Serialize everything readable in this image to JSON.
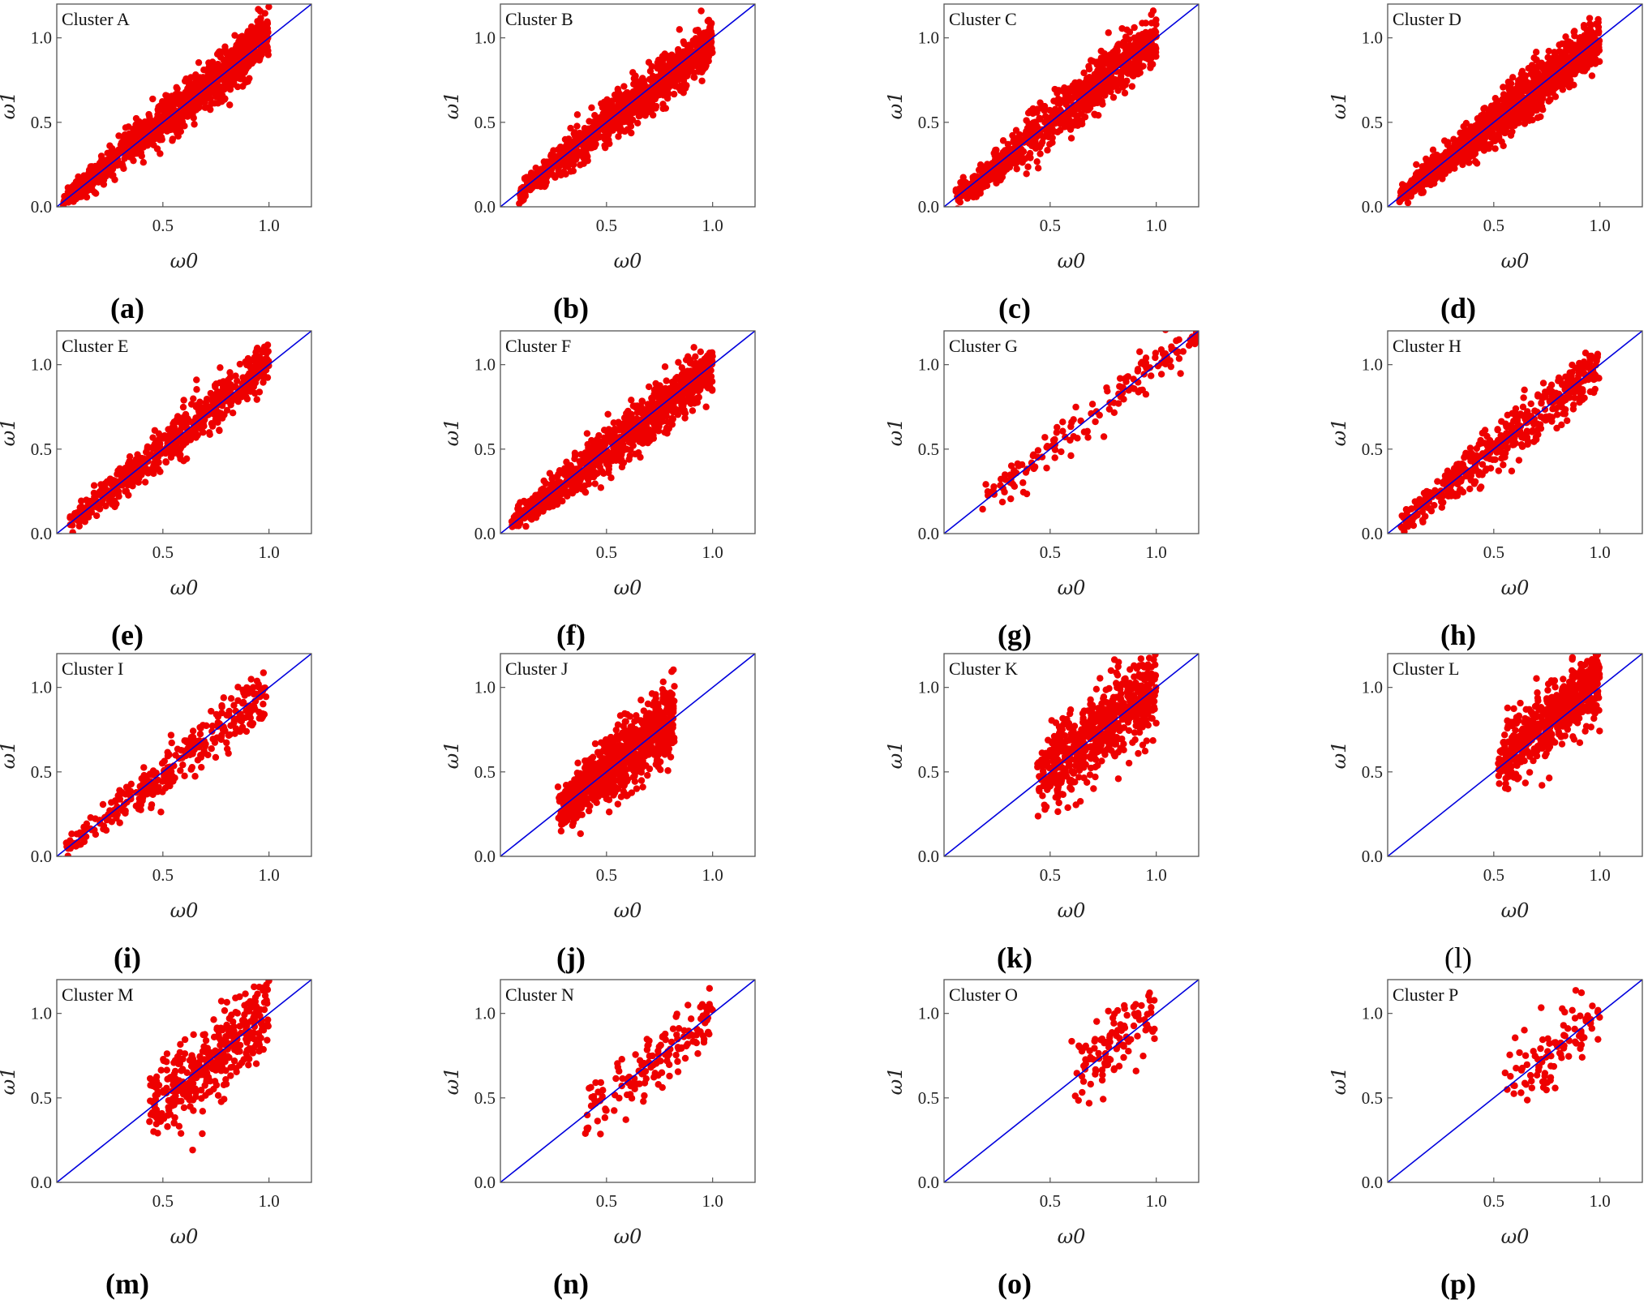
{
  "figure": {
    "panel_count": 16,
    "layout": "4 rows x 4 columns"
  },
  "colors": {
    "points": "#ee0000",
    "identity_line": "#0000dd",
    "axis": "#555555"
  },
  "chart_data": [
    {
      "type": "scatter",
      "panel_label": "(a)",
      "letter": "a",
      "bold": true,
      "title": "Cluster A",
      "xlabel": "ω0",
      "ylabel": "ω1",
      "xlim": [
        0.0,
        1.2
      ],
      "ylim": [
        0.0,
        1.2
      ],
      "xticks": [
        "0.5",
        "1.0"
      ],
      "yticks": [
        "0.0",
        "0.5",
        "1.0"
      ],
      "reference_line": "y = x",
      "point_count": 1200,
      "x_range": [
        0.03,
        1.0
      ],
      "slope_bias": 1.02,
      "spread": 0.07
    },
    {
      "type": "scatter",
      "panel_label": "(b)",
      "letter": "b",
      "bold": true,
      "title": "Cluster B",
      "xlabel": "ω0",
      "ylabel": "ω1",
      "xlim": [
        0.0,
        1.2
      ],
      "ylim": [
        0.0,
        1.2
      ],
      "xticks": [
        "0.5",
        "1.0"
      ],
      "yticks": [
        "0.0",
        "0.5",
        "1.0"
      ],
      "reference_line": "y = x",
      "point_count": 1000,
      "x_range": [
        0.08,
        1.0
      ],
      "slope_bias": 0.98,
      "spread": 0.07
    },
    {
      "type": "scatter",
      "panel_label": "(c)",
      "letter": "c",
      "bold": true,
      "title": "Cluster C",
      "xlabel": "ω0",
      "ylabel": "ω1",
      "xlim": [
        0.0,
        1.2
      ],
      "ylim": [
        0.0,
        1.2
      ],
      "xticks": [
        "0.5",
        "1.0"
      ],
      "yticks": [
        "0.0",
        "0.5",
        "1.0"
      ],
      "reference_line": "y = x",
      "point_count": 800,
      "x_range": [
        0.05,
        1.0
      ],
      "slope_bias": 1.0,
      "spread": 0.08
    },
    {
      "type": "scatter",
      "panel_label": "(d)",
      "letter": "d",
      "bold": true,
      "title": "Cluster D",
      "xlabel": "ω0",
      "ylabel": "ω1",
      "xlim": [
        0.0,
        1.2
      ],
      "ylim": [
        0.0,
        1.2
      ],
      "xticks": [
        "0.5",
        "1.0"
      ],
      "yticks": [
        "0.0",
        "0.5",
        "1.0"
      ],
      "reference_line": "y = x",
      "point_count": 1300,
      "x_range": [
        0.05,
        1.0
      ],
      "slope_bias": 0.99,
      "spread": 0.07
    },
    {
      "type": "scatter",
      "panel_label": "(e)",
      "letter": "e",
      "bold": true,
      "title": "Cluster E",
      "xlabel": "ω0",
      "ylabel": "ω1",
      "xlim": [
        0.0,
        1.2
      ],
      "ylim": [
        0.0,
        1.2
      ],
      "xticks": [
        "0.5",
        "1.0"
      ],
      "yticks": [
        "0.0",
        "0.5",
        "1.0"
      ],
      "reference_line": "y = x",
      "point_count": 600,
      "x_range": [
        0.06,
        1.0
      ],
      "slope_bias": 1.02,
      "spread": 0.07
    },
    {
      "type": "scatter",
      "panel_label": "(f)",
      "letter": "f",
      "bold": true,
      "title": "Cluster F",
      "xlabel": "ω0",
      "ylabel": "ω1",
      "xlim": [
        0.0,
        1.2
      ],
      "ylim": [
        0.0,
        1.2
      ],
      "xticks": [
        "0.5",
        "1.0"
      ],
      "yticks": [
        "0.0",
        "0.5",
        "1.0"
      ],
      "reference_line": "y = x",
      "point_count": 900,
      "x_range": [
        0.05,
        1.0
      ],
      "slope_bias": 0.98,
      "spread": 0.08
    },
    {
      "type": "scatter",
      "panel_label": "(g)",
      "letter": "g",
      "bold": true,
      "title": "Cluster G",
      "xlabel": "ω0",
      "ylabel": "ω1",
      "xlim": [
        0.0,
        1.2
      ],
      "ylim": [
        0.0,
        1.2
      ],
      "xticks": [
        "0.5",
        "1.0"
      ],
      "yticks": [
        "0.0",
        "0.5",
        "1.0"
      ],
      "reference_line": "y = x",
      "point_count": 160,
      "x_range": [
        0.18,
        1.2
      ],
      "slope_bias": 1.0,
      "spread": 0.07
    },
    {
      "type": "scatter",
      "panel_label": "(h)",
      "letter": "h",
      "bold": true,
      "title": "Cluster H",
      "xlabel": "ω0",
      "ylabel": "ω1",
      "xlim": [
        0.0,
        1.2
      ],
      "ylim": [
        0.0,
        1.2
      ],
      "xticks": [
        "0.5",
        "1.0"
      ],
      "yticks": [
        "0.0",
        "0.5",
        "1.0"
      ],
      "reference_line": "y = x",
      "point_count": 450,
      "x_range": [
        0.05,
        1.0
      ],
      "slope_bias": 1.0,
      "spread": 0.08
    },
    {
      "type": "scatter",
      "panel_label": "(i)",
      "letter": "i",
      "bold": true,
      "title": "Cluster I",
      "xlabel": "ω0",
      "ylabel": "ω1",
      "xlim": [
        0.0,
        1.2
      ],
      "ylim": [
        0.0,
        1.2
      ],
      "xticks": [
        "0.5",
        "1.0"
      ],
      "yticks": [
        "0.0",
        "0.5",
        "1.0"
      ],
      "reference_line": "y = x",
      "point_count": 320,
      "x_range": [
        0.04,
        1.0
      ],
      "slope_bias": 0.98,
      "spread": 0.08
    },
    {
      "type": "scatter",
      "panel_label": "(j)",
      "letter": "j",
      "bold": true,
      "title": "Cluster J",
      "xlabel": "ω0",
      "ylabel": "ω1",
      "xlim": [
        0.0,
        1.2
      ],
      "ylim": [
        0.0,
        1.2
      ],
      "xticks": [
        "0.5",
        "1.0"
      ],
      "yticks": [
        "0.0",
        "0.5",
        "1.0"
      ],
      "reference_line": "y = x",
      "point_count": 900,
      "x_range": [
        0.27,
        0.82
      ],
      "slope_bias": 1.0,
      "spread": 0.1
    },
    {
      "type": "scatter",
      "panel_label": "(k)",
      "letter": "k",
      "bold": true,
      "title": "Cluster K",
      "xlabel": "ω0",
      "ylabel": "ω1",
      "xlim": [
        0.0,
        1.2
      ],
      "ylim": [
        0.0,
        1.2
      ],
      "xticks": [
        "0.5",
        "1.0"
      ],
      "yticks": [
        "0.0",
        "0.5",
        "1.0"
      ],
      "reference_line": "y = x",
      "point_count": 650,
      "x_range": [
        0.44,
        1.0
      ],
      "slope_bias": 1.02,
      "spread": 0.12
    },
    {
      "type": "scatter",
      "panel_label": "(l)",
      "letter": "l",
      "bold": false,
      "title": "Cluster L",
      "xlabel": "ω0",
      "ylabel": "ω1",
      "xlim": [
        0.0,
        1.2
      ],
      "ylim": [
        0.0,
        1.2
      ],
      "xticks": [
        "0.5",
        "1.0"
      ],
      "yticks": [
        "0.0",
        "0.5",
        "1.0"
      ],
      "reference_line": "y = x",
      "point_count": 600,
      "x_range": [
        0.52,
        1.0
      ],
      "slope_bias": 1.05,
      "spread": 0.1
    },
    {
      "type": "scatter",
      "panel_label": "(m)",
      "letter": "m",
      "bold": true,
      "title": "Cluster M",
      "xlabel": "ω0",
      "ylabel": "ω1",
      "xlim": [
        0.0,
        1.2
      ],
      "ylim": [
        0.0,
        1.2
      ],
      "xticks": [
        "0.5",
        "1.0"
      ],
      "yticks": [
        "0.0",
        "0.5",
        "1.0"
      ],
      "reference_line": "y = x",
      "point_count": 380,
      "x_range": [
        0.43,
        1.0
      ],
      "slope_bias": 1.0,
      "spread": 0.12
    },
    {
      "type": "scatter",
      "panel_label": "(n)",
      "letter": "n",
      "bold": true,
      "title": "Cluster N",
      "xlabel": "ω0",
      "ylabel": "ω1",
      "xlim": [
        0.0,
        1.2
      ],
      "ylim": [
        0.0,
        1.2
      ],
      "xticks": [
        "0.5",
        "1.0"
      ],
      "yticks": [
        "0.0",
        "0.5",
        "1.0"
      ],
      "reference_line": "y = x",
      "point_count": 150,
      "x_range": [
        0.4,
        1.0
      ],
      "slope_bias": 1.0,
      "spread": 0.1
    },
    {
      "type": "scatter",
      "panel_label": "(o)",
      "letter": "o",
      "bold": true,
      "title": "Cluster O",
      "xlabel": "ω0",
      "ylabel": "ω1",
      "xlim": [
        0.0,
        1.2
      ],
      "ylim": [
        0.0,
        1.2
      ],
      "xticks": [
        "0.5",
        "1.0"
      ],
      "yticks": [
        "0.0",
        "0.5",
        "1.0"
      ],
      "reference_line": "y = x",
      "point_count": 110,
      "x_range": [
        0.6,
        1.0
      ],
      "slope_bias": 1.05,
      "spread": 0.12
    },
    {
      "type": "scatter",
      "panel_label": "(p)",
      "letter": "p",
      "bold": true,
      "title": "Cluster P",
      "xlabel": "ω0",
      "ylabel": "ω1",
      "xlim": [
        0.0,
        1.2
      ],
      "ylim": [
        0.0,
        1.2
      ],
      "xticks": [
        "0.5",
        "1.0"
      ],
      "yticks": [
        "0.0",
        "0.5",
        "1.0"
      ],
      "reference_line": "y = x",
      "point_count": 100,
      "x_range": [
        0.55,
        1.0
      ],
      "slope_bias": 1.02,
      "spread": 0.12
    }
  ]
}
